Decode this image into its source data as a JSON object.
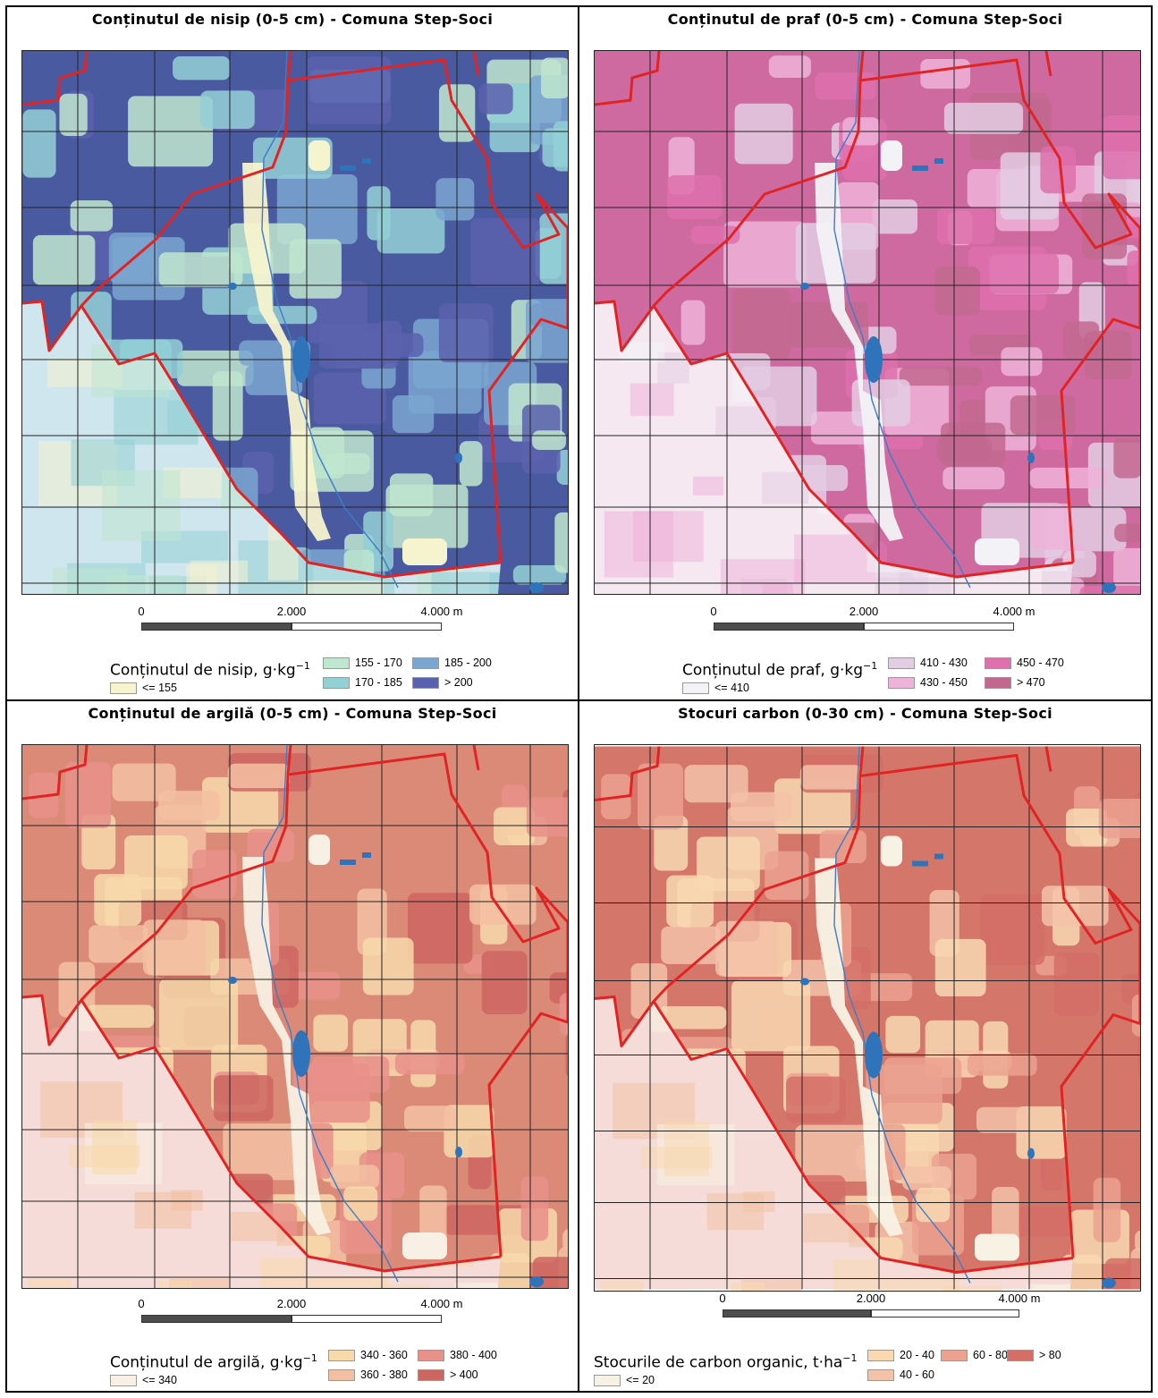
{
  "panels": [
    {
      "id": "nisip",
      "title": "Conținutul de nisip (0-5 cm) - Comuna Step-Soci",
      "legend_title": "Conținutul de nisip, g·kg",
      "legend_unit_sup": "−1",
      "classes": [
        {
          "label": "<= 155",
          "color": "#f6f3cf"
        },
        {
          "label": "155 - 170",
          "color": "#bfe6cf"
        },
        {
          "label": "170 - 185",
          "color": "#93d0d6"
        },
        {
          "label": "185 - 200",
          "color": "#7aa6d0"
        },
        {
          "label": "> 200",
          "color": "#5a62ad"
        }
      ],
      "base": "#4a5aa0",
      "pale": "#cfe6ee",
      "scale": {
        "labels": [
          "0",
          "2.000",
          "4.000 m"
        ]
      }
    },
    {
      "id": "praf",
      "title": "Conținutul de praf (0-5 cm) - Comuna Step-Soci",
      "legend_title": "Conținutul de praf, g·kg",
      "legend_unit_sup": "−1",
      "classes": [
        {
          "label": "<= 410",
          "color": "#f2f2f7"
        },
        {
          "label": "410 - 430",
          "color": "#e3cde3"
        },
        {
          "label": "430 - 450",
          "color": "#eeb3d9"
        },
        {
          "label": "450 - 470",
          "color": "#de70ad"
        },
        {
          "label": "> 470",
          "color": "#c2688f"
        }
      ],
      "base": "#cf6aa0",
      "pale": "#f6e8f1",
      "scale": {
        "labels": [
          "0",
          "2.000",
          "4.000 m"
        ]
      }
    },
    {
      "id": "argila",
      "title": "Conținutul de argilă (0-5 cm) - Comuna Step-Soci",
      "legend_title": "Conținutul de argilă, g·kg",
      "legend_unit_sup": "−1",
      "classes": [
        {
          "label": "<= 340",
          "color": "#f8f0e4"
        },
        {
          "label": "340 - 360",
          "color": "#f7d9ac"
        },
        {
          "label": "360 - 380",
          "color": "#f3bfa2"
        },
        {
          "label": "380 - 400",
          "color": "#e8908a"
        },
        {
          "label": "> 400",
          "color": "#cd6560"
        }
      ],
      "base": "#dc8a78",
      "pale": "#f5dcd8",
      "scale": {
        "labels": [
          "0",
          "2.000",
          "4.000 m"
        ]
      }
    },
    {
      "id": "carbon",
      "title": "Stocuri carbon (0-30 cm) - Comuna Step-Soci",
      "legend_title": "Stocurile de carbon organic, t·ha",
      "legend_unit_sup": "−1",
      "classes": [
        {
          "label": "<= 20",
          "color": "#f8f2e4"
        },
        {
          "label": "20 - 40",
          "color": "#f8d9b2"
        },
        {
          "label": "40 - 60",
          "color": "#f3c2a8"
        },
        {
          "label": "60 - 80",
          "color": "#eba28f"
        },
        {
          "label": "> 80",
          "color": "#d46e67"
        }
      ],
      "base": "#d4766a",
      "pale": "#f5dcd8",
      "scale": {
        "labels": [
          "0",
          "2.000",
          "4.000 m"
        ]
      }
    }
  ]
}
